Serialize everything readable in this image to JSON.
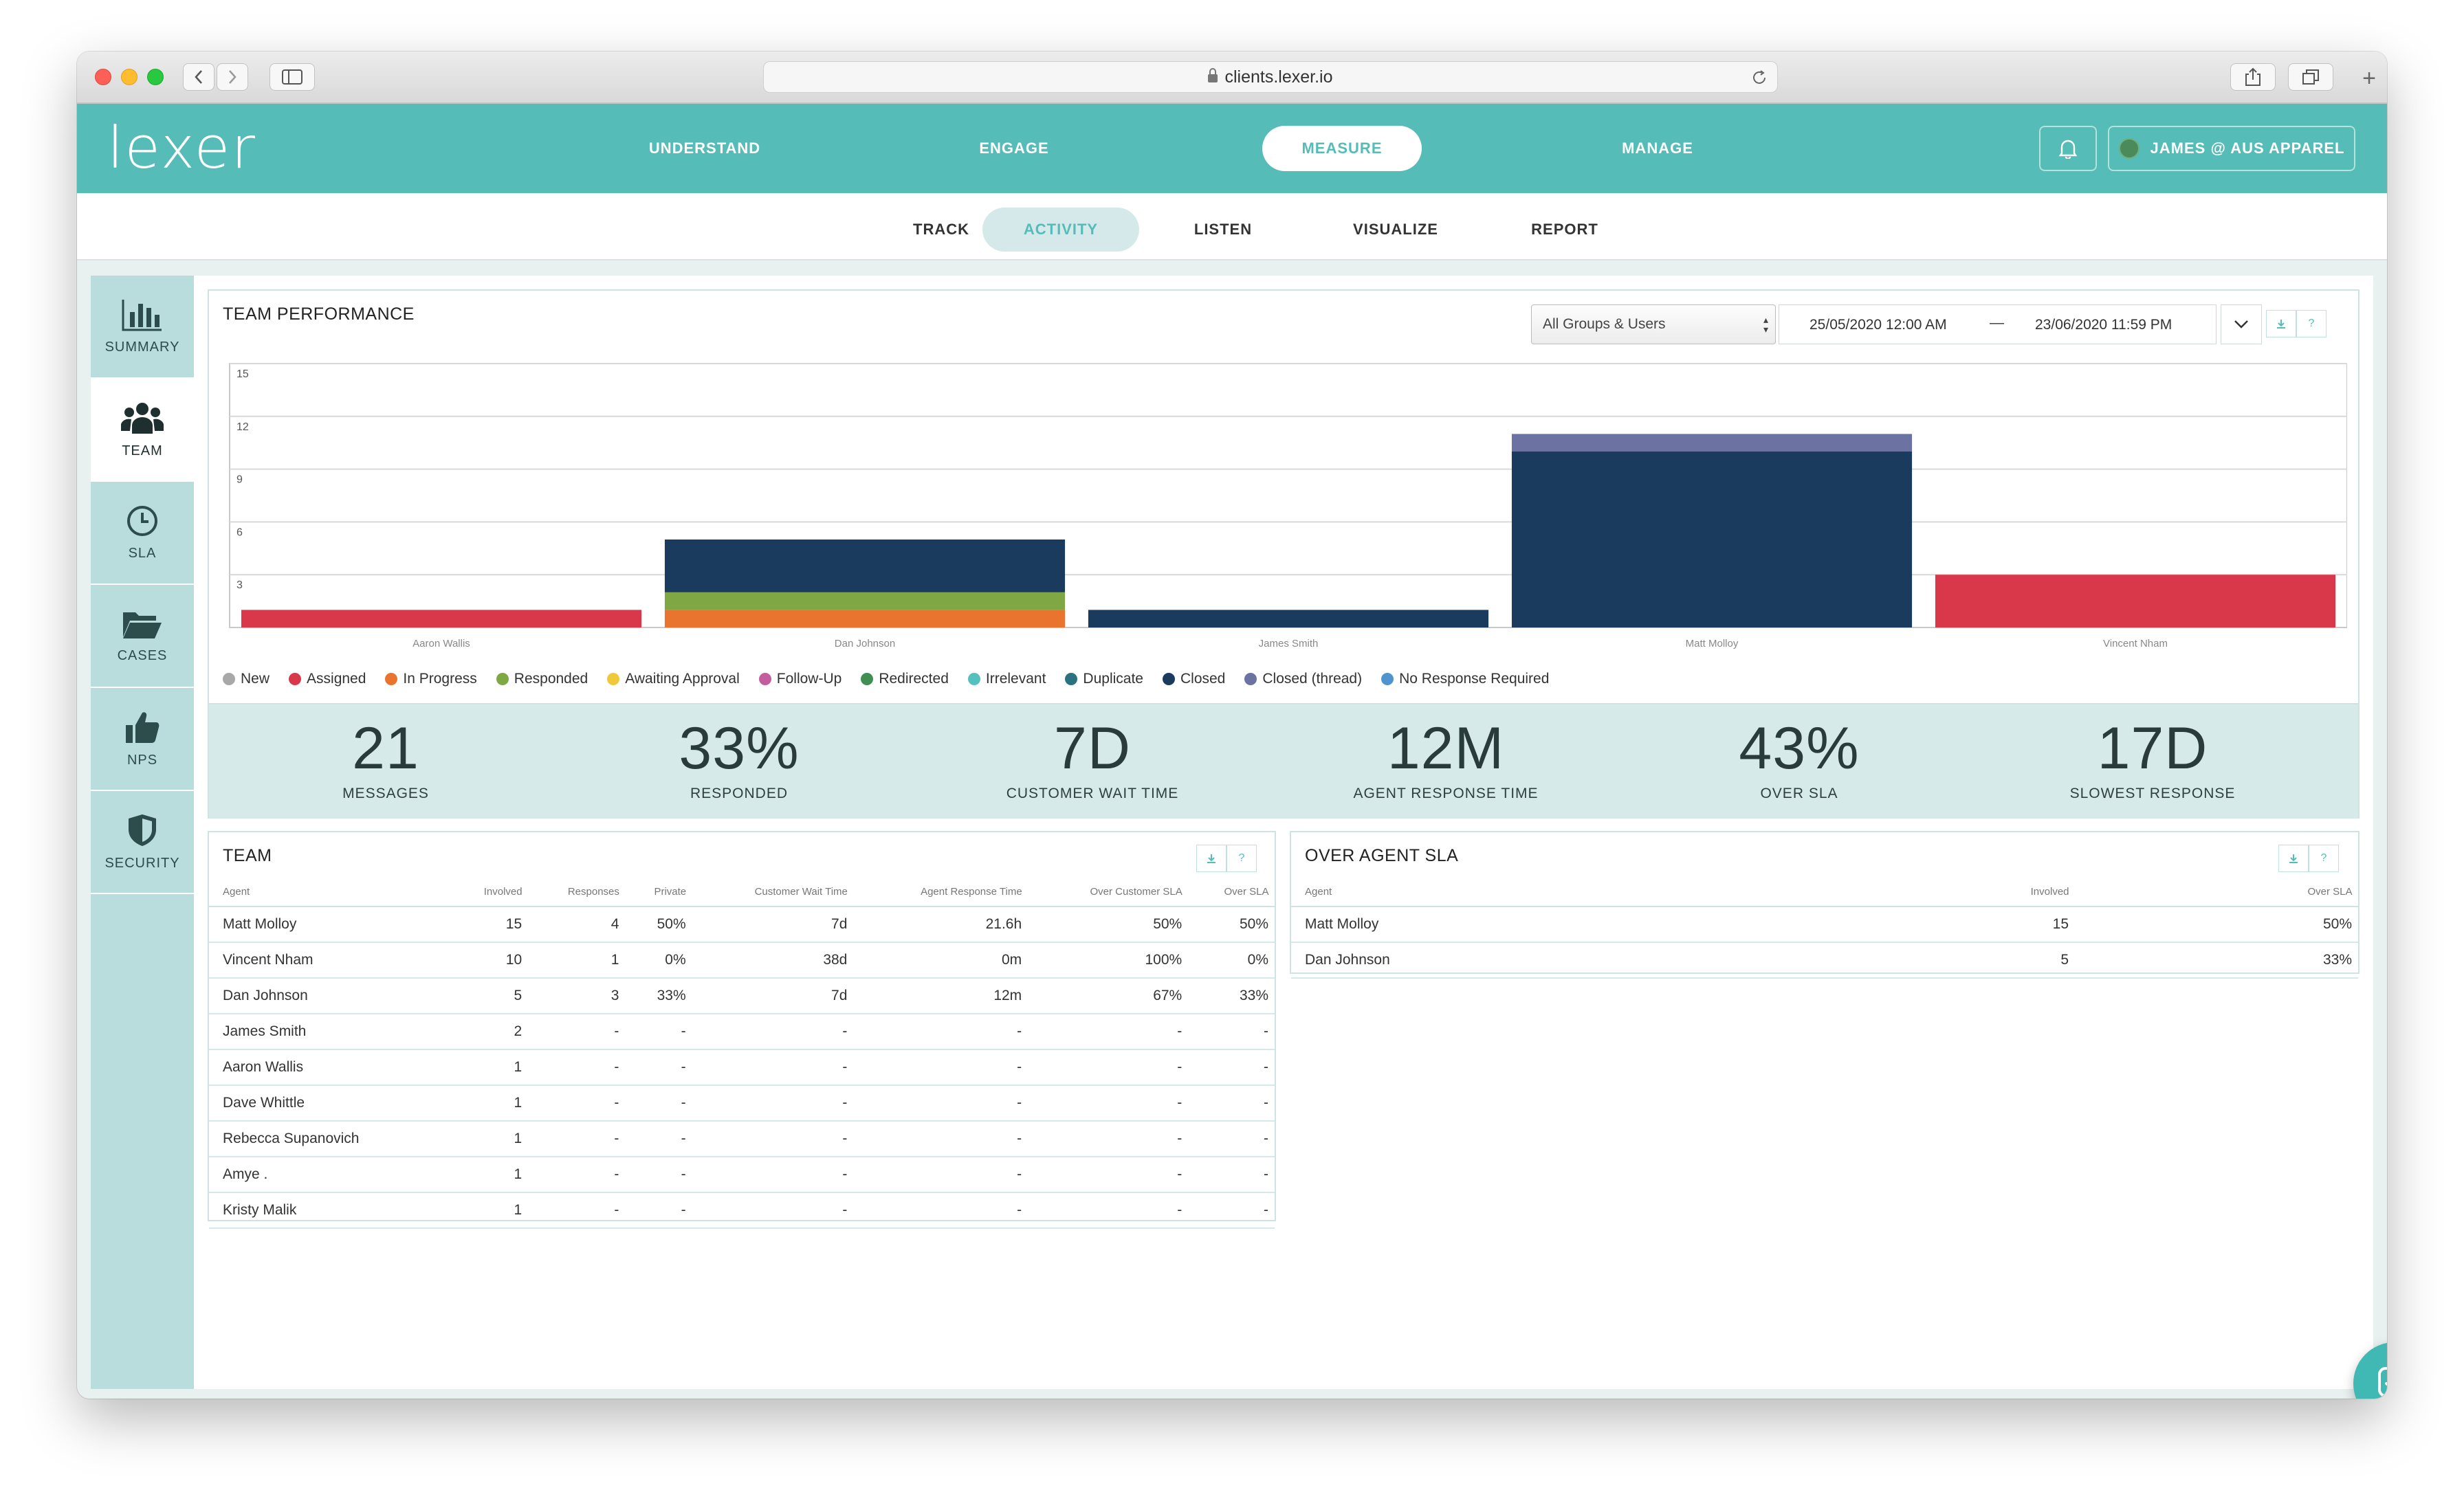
{
  "browser": {
    "url": "clients.lexer.io"
  },
  "app": {
    "logo": "lexer",
    "nav": [
      {
        "label": "UNDERSTAND"
      },
      {
        "label": "ENGAGE"
      },
      {
        "label": "MEASURE"
      },
      {
        "label": "MANAGE"
      }
    ],
    "active_nav": "MEASURE",
    "account": "JAMES @ AUS APPAREL",
    "subnav": [
      {
        "label": "TRACK"
      },
      {
        "label": "ACTIVITY"
      },
      {
        "label": "LISTEN"
      },
      {
        "label": "VISUALIZE"
      },
      {
        "label": "REPORT"
      }
    ],
    "active_subnav": "ACTIVITY",
    "accent": "#55bcb7"
  },
  "sidebar": {
    "items": [
      {
        "label": "SUMMARY",
        "icon": "bar-chart-icon"
      },
      {
        "label": "TEAM",
        "icon": "team-icon"
      },
      {
        "label": "SLA",
        "icon": "clock-icon"
      },
      {
        "label": "CASES",
        "icon": "folder-icon"
      },
      {
        "label": "NPS",
        "icon": "thumbs-up-icon"
      },
      {
        "label": "SECURITY",
        "icon": "shield-icon"
      }
    ],
    "active": "TEAM"
  },
  "team_performance": {
    "title": "TEAM PERFORMANCE",
    "group_select": "All Groups & Users",
    "date_from": "25/05/2020 12:00 AM",
    "date_separator": "—",
    "date_to": "23/06/2020 11:59 PM",
    "stats": [
      {
        "value": "21",
        "label": "MESSAGES"
      },
      {
        "value": "33%",
        "label": "RESPONDED"
      },
      {
        "value": "7D",
        "label": "CUSTOMER WAIT TIME"
      },
      {
        "value": "12M",
        "label": "AGENT RESPONSE TIME"
      },
      {
        "value": "43%",
        "label": "OVER SLA"
      },
      {
        "value": "17D",
        "label": "SLOWEST RESPONSE"
      }
    ]
  },
  "chart_data": {
    "type": "bar",
    "stacked": true,
    "categories": [
      "Aaron Wallis",
      "Dan Johnson",
      "James Smith",
      "Matt Molloy",
      "Vincent Nham"
    ],
    "ylim": [
      0,
      15
    ],
    "yticks": [
      3,
      6,
      9,
      12,
      15
    ],
    "grid": true,
    "legend_position": "bottom-left",
    "series": [
      {
        "name": "New",
        "color": "#a8a8a8",
        "values": [
          0,
          0,
          0,
          0,
          0
        ]
      },
      {
        "name": "Assigned",
        "color": "#d9374a",
        "values": [
          1,
          0,
          0,
          0,
          3
        ]
      },
      {
        "name": "In Progress",
        "color": "#e8742f",
        "values": [
          0,
          1,
          0,
          0,
          0
        ]
      },
      {
        "name": "Responded",
        "color": "#7fa844",
        "values": [
          0,
          1,
          0,
          0,
          0
        ]
      },
      {
        "name": "Awaiting Approval",
        "color": "#efc93a",
        "values": [
          0,
          0,
          0,
          0,
          0
        ]
      },
      {
        "name": "Follow-Up",
        "color": "#c45ca0",
        "values": [
          0,
          0,
          0,
          0,
          0
        ]
      },
      {
        "name": "Redirected",
        "color": "#3f8f53",
        "values": [
          0,
          0,
          0,
          0,
          0
        ]
      },
      {
        "name": "Irrelevant",
        "color": "#55c1bf",
        "values": [
          0,
          0,
          0,
          0,
          0
        ]
      },
      {
        "name": "Duplicate",
        "color": "#2b7280",
        "values": [
          0,
          0,
          0,
          0,
          0
        ]
      },
      {
        "name": "Closed",
        "color": "#1a3a5e",
        "values": [
          0,
          3,
          1,
          10,
          0
        ]
      },
      {
        "name": "Closed (thread)",
        "color": "#6c73a3",
        "values": [
          0,
          0,
          0,
          1,
          0
        ]
      },
      {
        "name": "No Response Required",
        "color": "#4f93cf",
        "values": [
          0,
          0,
          0,
          0,
          0
        ]
      }
    ]
  },
  "team_table": {
    "title": "TEAM",
    "columns": [
      "Agent",
      "Involved",
      "Responses",
      "Private",
      "Customer Wait Time",
      "Agent Response Time",
      "Over Customer SLA",
      "Over SLA"
    ],
    "rows": [
      [
        "Matt Molloy",
        "15",
        "4",
        "50%",
        "7d",
        "21.6h",
        "50%",
        "50%"
      ],
      [
        "Vincent Nham",
        "10",
        "1",
        "0%",
        "38d",
        "0m",
        "100%",
        "0%"
      ],
      [
        "Dan Johnson",
        "5",
        "3",
        "33%",
        "7d",
        "12m",
        "67%",
        "33%"
      ],
      [
        "James Smith",
        "2",
        "-",
        "-",
        "-",
        "-",
        "-",
        "-"
      ],
      [
        "Aaron Wallis",
        "1",
        "-",
        "-",
        "-",
        "-",
        "-",
        "-"
      ],
      [
        "Dave Whittle",
        "1",
        "-",
        "-",
        "-",
        "-",
        "-",
        "-"
      ],
      [
        "Rebecca Supanovich",
        "1",
        "-",
        "-",
        "-",
        "-",
        "-",
        "-"
      ],
      [
        "Amye .",
        "1",
        "-",
        "-",
        "-",
        "-",
        "-",
        "-"
      ],
      [
        "Kristy Malik",
        "1",
        "-",
        "-",
        "-",
        "-",
        "-",
        "-"
      ]
    ]
  },
  "sla_table": {
    "title": "OVER AGENT SLA",
    "columns": [
      "Agent",
      "Involved",
      "Over SLA"
    ],
    "rows": [
      [
        "Matt Molloy",
        "15",
        "50%"
      ],
      [
        "Dan Johnson",
        "5",
        "33%"
      ]
    ]
  }
}
